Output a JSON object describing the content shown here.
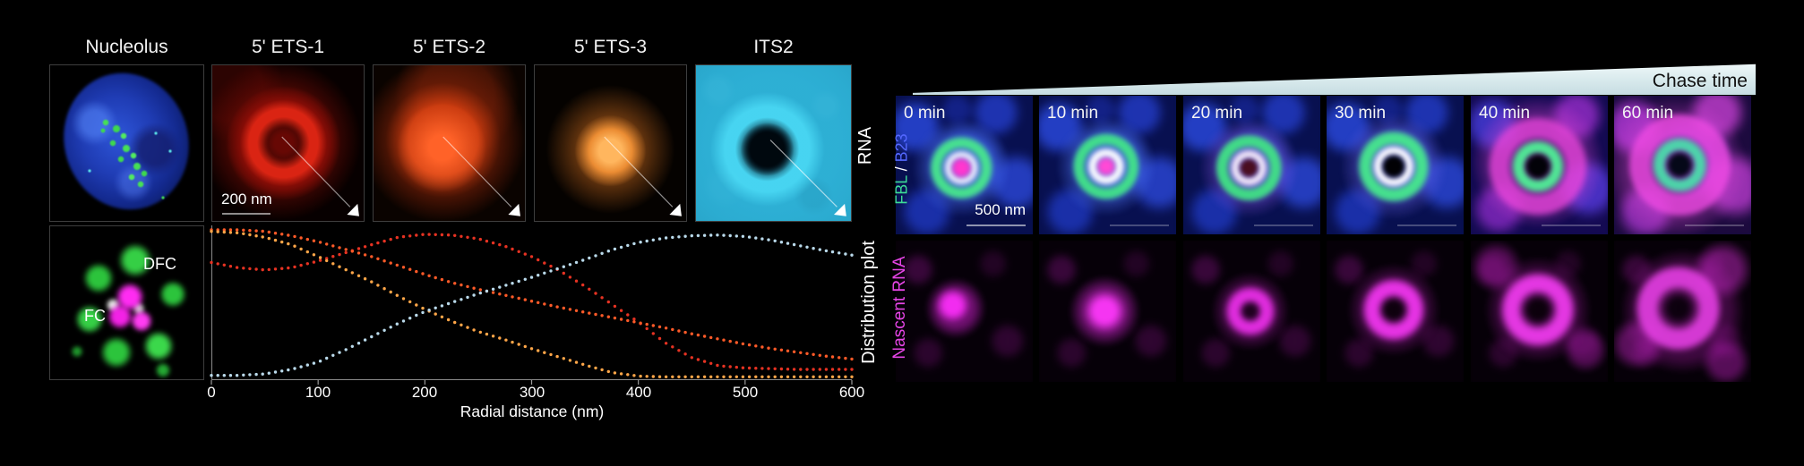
{
  "left": {
    "panel_titles": [
      "Nucleolus",
      "5' ETS-1",
      "5' ETS-2",
      "5' ETS-3",
      "ITS2"
    ],
    "row1_side_label": "RNA",
    "scale_bar": "200 nm",
    "fc_panel": {
      "dfc_label": "DFC",
      "fc_label": "FC"
    }
  },
  "right": {
    "chase_label": "Chase time",
    "time_labels": [
      "0 min",
      "10 min",
      "20 min",
      "30 min",
      "40 min",
      "60 min"
    ],
    "scale_bar": "500 nm",
    "row1_side_label": {
      "fbl": "FBL",
      "sep": " / ",
      "b23": "B23"
    },
    "row2_side_label": "Nascent RNA"
  },
  "colors": {
    "background": "#000000",
    "wedge": "#d7e9ec",
    "fbl_green": "#3ddc97",
    "b23_blue": "#5468ff",
    "nascent_magenta": "#e645e6",
    "text_white": "#f2f2f2"
  },
  "chart_data": {
    "type": "line",
    "style": "dotted",
    "title": "Distribution plot",
    "xlabel": "Radial distance (nm)",
    "xlim": [
      0,
      600
    ],
    "ylim": [
      0,
      1
    ],
    "grid": false,
    "legend": "none",
    "x_ticks": [
      "0",
      "100",
      "200",
      "300",
      "400",
      "500",
      "600"
    ],
    "x": [
      0,
      25,
      50,
      75,
      100,
      125,
      150,
      175,
      200,
      225,
      250,
      275,
      300,
      325,
      350,
      375,
      400,
      425,
      450,
      475,
      500,
      525,
      550,
      575,
      600
    ],
    "series": [
      {
        "name": "5' ETS-1",
        "color": "#e63222",
        "values": [
          0.78,
          0.745,
          0.73,
          0.745,
          0.79,
          0.845,
          0.9,
          0.95,
          0.97,
          0.965,
          0.94,
          0.89,
          0.82,
          0.73,
          0.62,
          0.5,
          0.38,
          0.24,
          0.14,
          0.085,
          0.07,
          0.065,
          0.06,
          0.06,
          0.06
        ]
      },
      {
        "name": "5' ETS-2",
        "color": "#ff5a28",
        "values": [
          1.0,
          1.0,
          0.99,
          0.96,
          0.92,
          0.87,
          0.82,
          0.76,
          0.7,
          0.645,
          0.6,
          0.56,
          0.52,
          0.48,
          0.445,
          0.41,
          0.375,
          0.34,
          0.3,
          0.265,
          0.23,
          0.2,
          0.175,
          0.15,
          0.13
        ]
      },
      {
        "name": "5' ETS-3",
        "color": "#ffa648",
        "values": [
          0.99,
          0.98,
          0.95,
          0.9,
          0.82,
          0.735,
          0.65,
          0.555,
          0.465,
          0.385,
          0.315,
          0.26,
          0.2,
          0.145,
          0.09,
          0.04,
          0.015,
          0.01,
          0.01,
          0.01,
          0.01,
          0.01,
          0.01,
          0.01,
          0.01
        ]
      },
      {
        "name": "ITS2",
        "color": "#b9d9ea",
        "values": [
          0.02,
          0.02,
          0.03,
          0.06,
          0.11,
          0.19,
          0.28,
          0.37,
          0.45,
          0.51,
          0.57,
          0.625,
          0.68,
          0.74,
          0.8,
          0.865,
          0.915,
          0.945,
          0.96,
          0.965,
          0.955,
          0.93,
          0.895,
          0.86,
          0.83
        ]
      }
    ]
  }
}
